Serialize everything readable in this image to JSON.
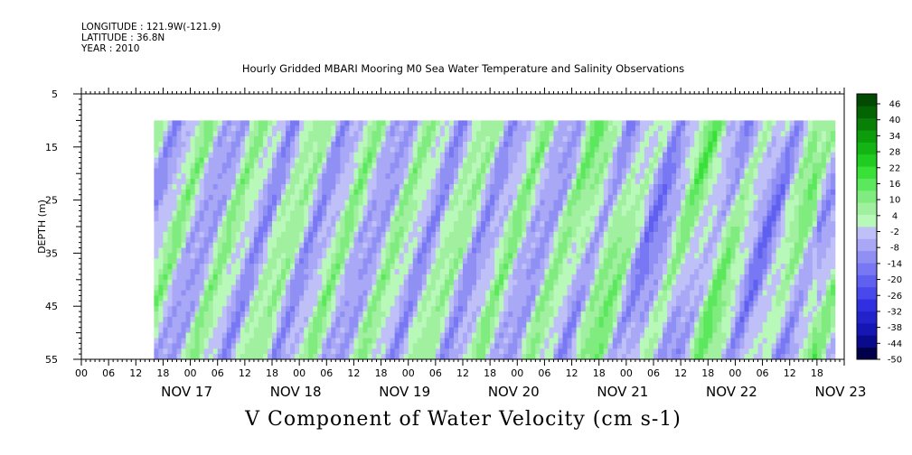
{
  "header": {
    "longitude": "LONGITUDE : 121.9W(-121.9)",
    "latitude": "LATITUDE : 36.8N",
    "year": "YEAR : 2010"
  },
  "chart_data": {
    "type": "heatmap",
    "title": "Hourly Gridded MBARI Mooring M0 Sea Water Temperature and Salinity Observations",
    "xlabel": "V Component of Water Velocity (cm s-1)",
    "ylabel": "DEPTH (m)",
    "y_range": [
      5,
      55
    ],
    "y_inverted": true,
    "y_ticks": [
      5,
      15,
      25,
      35,
      45,
      55
    ],
    "x_hour_ticks": [
      "00",
      "06",
      "12",
      "18",
      "00",
      "06",
      "12",
      "18",
      "00",
      "06",
      "12",
      "18",
      "00",
      "06",
      "12",
      "18",
      "00",
      "06",
      "12",
      "18",
      "00",
      "06",
      "12",
      "18",
      "00",
      "06",
      "12",
      "18"
    ],
    "x_day_labels": [
      "NOV 17",
      "NOV 18",
      "NOV 19",
      "NOV 20",
      "NOV 21",
      "NOV 22",
      "NOV 23"
    ],
    "x_range_hours": [
      -12,
      156
    ],
    "data_start_hour": 4,
    "data_end_hour": 154,
    "data_top_depth": 10,
    "colorbar": {
      "levels": [
        "46",
        "40",
        "34",
        "28",
        "22",
        "16",
        "10",
        "4",
        "-2",
        "-8",
        "-14",
        "-20",
        "-26",
        "-32",
        "-38",
        "-44",
        "-50"
      ],
      "range": [
        -50,
        52
      ],
      "colors": [
        "#00004a",
        "#0a0a8c",
        "#1616b4",
        "#2323cc",
        "#3030e0",
        "#4848ec",
        "#6060f0",
        "#7878f4",
        "#9090f4",
        "#a8a8f6",
        "#c0c0f8",
        "#b8f8b8",
        "#a0f0a0",
        "#80ec80",
        "#5ce85c",
        "#38e038",
        "#20cc20",
        "#14b414",
        "#0c9c0c",
        "#088008",
        "#046404",
        "#024a02"
      ]
    },
    "field_notes": "alternating bands of positive (green) and negative (blue) velocity, tilted with depth"
  }
}
